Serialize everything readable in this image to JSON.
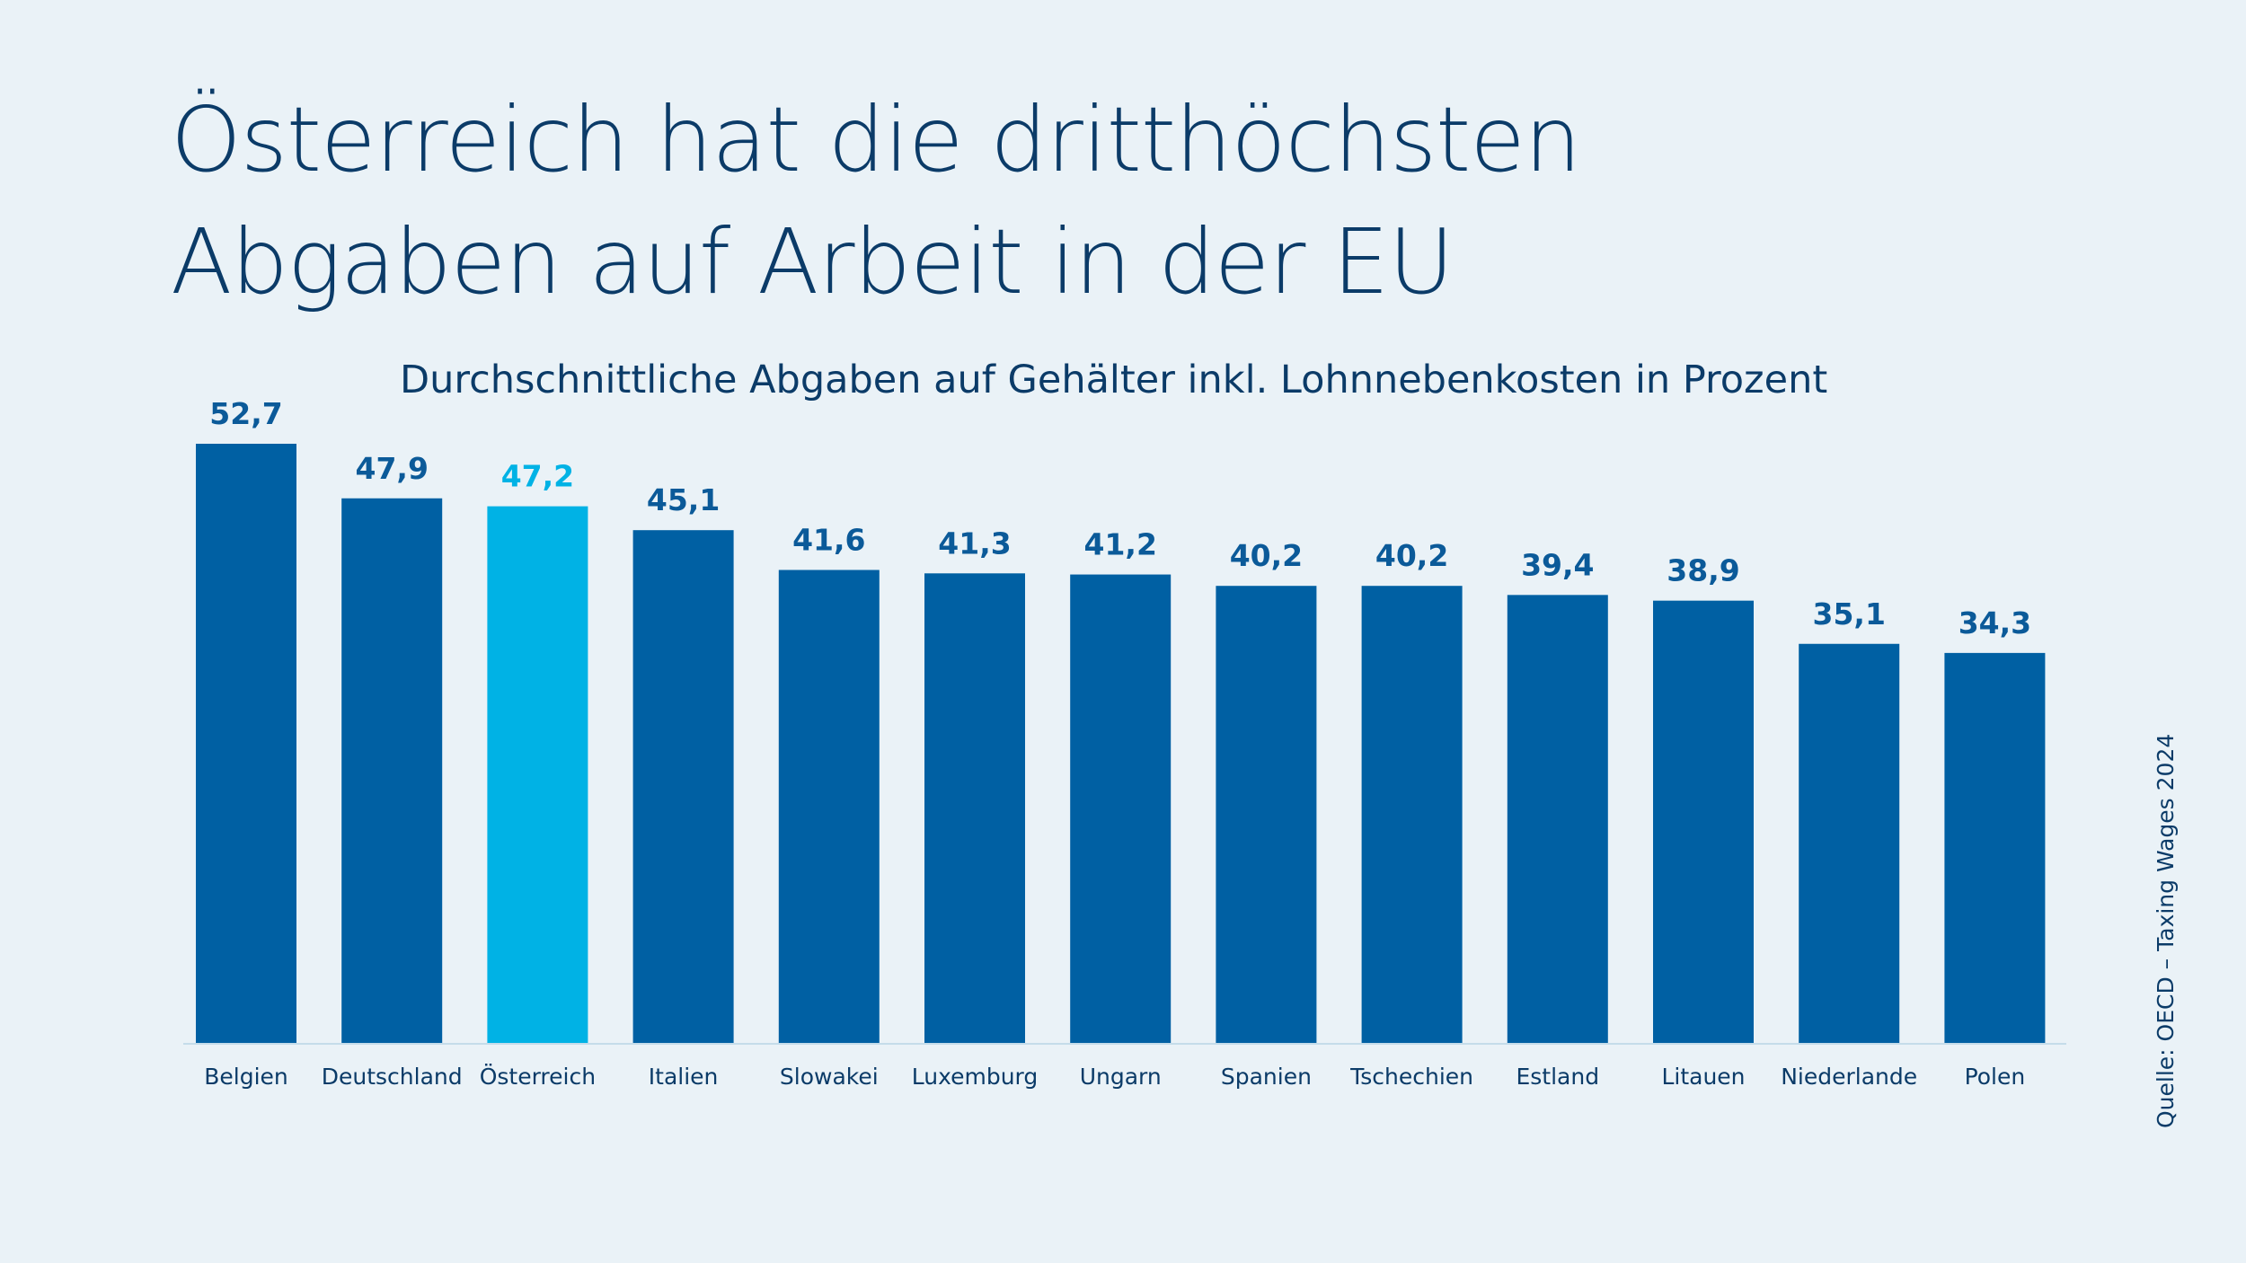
{
  "title_line_1": "Österreich hat die dritthöchsten",
  "title_line_2": "Abgaben auf Arbeit in der EU",
  "subtitle": "Durchschnittliche Abgaben auf Gehälter inkl. Lohnnebenkosten in Prozent",
  "source": "Quelle: OECD – Taxing Wages 2024",
  "colors": {
    "background": "#eaf2f7",
    "bar": "#0060a3",
    "highlight": "#00b2e5",
    "text": "#0b3b68",
    "value_label": "#0b5a99",
    "axis": "#c5dcea"
  },
  "chart_data": {
    "type": "bar",
    "title": "Österreich hat die dritthöchsten Abgaben auf Arbeit in der EU",
    "subtitle": "Durchschnittliche Abgaben auf Gehälter inkl. Lohnnebenkosten in Prozent",
    "categories": [
      "Belgien",
      "Deutschland",
      "Österreich",
      "Italien",
      "Slowakei",
      "Luxemburg",
      "Ungarn",
      "Spanien",
      "Tschechien",
      "Estland",
      "Litauen",
      "Niederlande",
      "Polen"
    ],
    "values": [
      52.7,
      47.9,
      47.2,
      45.1,
      41.6,
      41.3,
      41.2,
      40.2,
      40.2,
      39.4,
      38.9,
      35.1,
      34.3
    ],
    "value_labels": [
      "52,7",
      "47,9",
      "47,2",
      "45,1",
      "41,6",
      "41,3",
      "41,2",
      "40,2",
      "40,2",
      "39,4",
      "38,9",
      "35,1",
      "34,3"
    ],
    "highlight": "Österreich",
    "ylim": [
      0,
      52.7
    ],
    "grid": false,
    "legend": "none"
  }
}
